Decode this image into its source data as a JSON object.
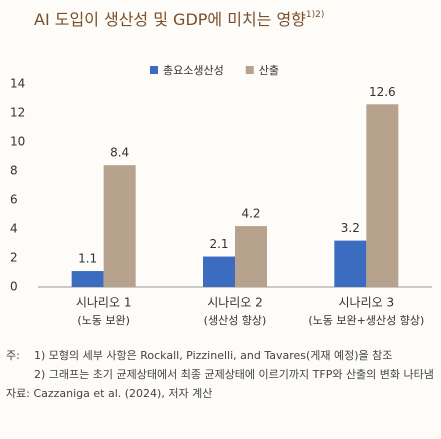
{
  "chart_data": {
    "type": "bar",
    "title": "AI 도입이 생산성 및 GDP에 미치는 영향",
    "title_note": "1)2)",
    "categories": [
      "시나리오 1",
      "시나리오 2",
      "시나리오 3"
    ],
    "category_notes": [
      "(노동 보완)",
      "(생산성 향상)",
      "(노동 보완+생산성 향상)"
    ],
    "series": [
      {
        "name": "총요소생산성",
        "color": "#3b6cc0",
        "values": [
          1.1,
          2.1,
          3.2
        ]
      },
      {
        "name": "산출",
        "color": "#b7a38d",
        "values": [
          8.4,
          4.2,
          12.6
        ]
      }
    ],
    "ylim": [
      0,
      14
    ],
    "yticks": [
      0,
      2,
      4,
      6,
      8,
      10,
      12,
      14
    ],
    "grid": false,
    "legend": "top"
  },
  "notes": {
    "label": "주:",
    "items": [
      "1) 모형의 세부 사항은 Rockall, Pizzinelli, and Tavares(게재 예정)을 참조",
      "2) 그래프는 초기 균제상태에서 최종 균제상태에 이르기까지 TFP와 산출의 변화 나타냄"
    ],
    "source": "자료: Cazzaniga et al. (2024), 저자 계산"
  }
}
